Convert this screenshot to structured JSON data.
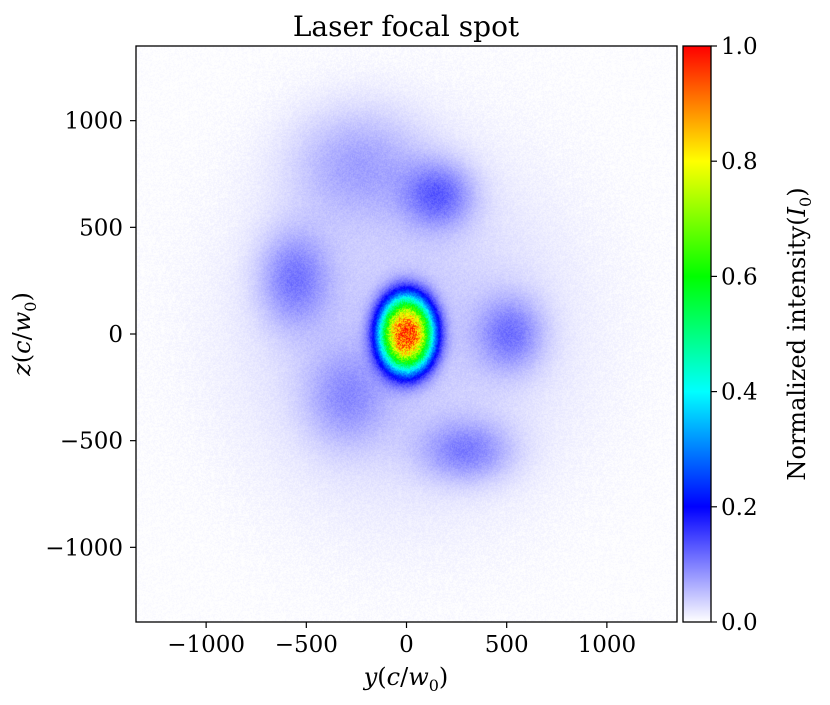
{
  "chart_data": {
    "type": "heatmap",
    "title": "Laser focal spot",
    "xlabel": {
      "var": "y",
      "unit_left": "(",
      "unit_c": "c",
      "unit_slash": "/",
      "unit_w": "w",
      "unit_sub": "0",
      "unit_right": ")"
    },
    "ylabel": {
      "var": "z",
      "unit_left": "(",
      "unit_c": "c",
      "unit_slash": "/",
      "unit_w": "w",
      "unit_sub": "0",
      "unit_right": ")"
    },
    "xlim": [
      -1350,
      1350
    ],
    "ylim": [
      -1350,
      1350
    ],
    "xticks": [
      -1000,
      -500,
      0,
      500,
      1000
    ],
    "xtick_labels": [
      "−1000",
      "−500",
      "0",
      "500",
      "1000"
    ],
    "yticks": [
      1000,
      500,
      0,
      -500,
      -1000
    ],
    "ytick_labels": [
      "1000",
      "500",
      "0",
      "−500",
      "−1000"
    ],
    "colorbar": {
      "label_prefix": "Normalized intensity(",
      "label_var": "I",
      "label_sub": "0",
      "label_suffix": ")",
      "range": [
        0.0,
        1.0
      ],
      "ticks": [
        0.0,
        0.2,
        0.4,
        0.6,
        0.8,
        1.0
      ],
      "tick_labels": [
        "0.0",
        "0.2",
        "0.4",
        "0.6",
        "0.8",
        "1.0"
      ],
      "colormap": [
        {
          "v": 0.0,
          "c": "#ffffff"
        },
        {
          "v": 0.2,
          "c": "#0000ff"
        },
        {
          "v": 0.4,
          "c": "#00ffff"
        },
        {
          "v": 0.6,
          "c": "#00ff00"
        },
        {
          "v": 0.8,
          "c": "#ffff00"
        },
        {
          "v": 1.0,
          "c": "#ff0000"
        }
      ]
    },
    "spot_components": [
      {
        "name": "core",
        "cx": 0,
        "cz": 0,
        "sx": 135,
        "sz": 175,
        "peak": 0.9,
        "shape": "plateau"
      },
      {
        "name": "lobe-top",
        "cx": 160,
        "cz": 650,
        "sx": 170,
        "sz": 150,
        "peak": 0.1
      },
      {
        "name": "lobe-left",
        "cx": -560,
        "cz": 260,
        "sx": 170,
        "sz": 220,
        "peak": 0.085
      },
      {
        "name": "lobe-right",
        "cx": 520,
        "cz": 0,
        "sx": 160,
        "sz": 170,
        "peak": 0.085
      },
      {
        "name": "lobe-bottom",
        "cx": 300,
        "cz": -550,
        "sx": 220,
        "sz": 140,
        "peak": 0.08
      },
      {
        "name": "lobe-upper-left",
        "cx": -240,
        "cz": 800,
        "sx": 330,
        "sz": 260,
        "peak": 0.06
      },
      {
        "name": "lobe-lower-left",
        "cx": -300,
        "cz": -300,
        "sx": 200,
        "sz": 220,
        "peak": 0.06
      },
      {
        "name": "halo",
        "cx": 0,
        "cz": 0,
        "sx": 780,
        "sz": 780,
        "peak": 0.045
      }
    ],
    "grid": false
  }
}
